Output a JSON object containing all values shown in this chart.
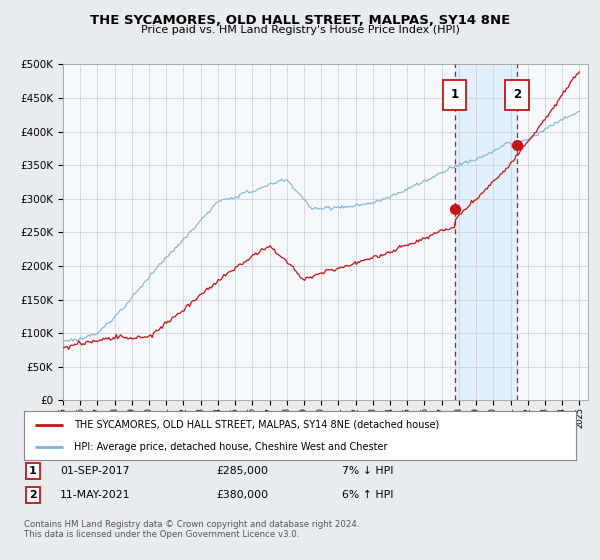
{
  "title": "THE SYCAMORES, OLD HALL STREET, MALPAS, SY14 8NE",
  "subtitle": "Price paid vs. HM Land Registry's House Price Index (HPI)",
  "ylim": [
    0,
    500000
  ],
  "xlim_start": 1995.0,
  "xlim_end": 2025.5,
  "sale1_x": 2017.75,
  "sale1_y": 285000,
  "sale2_x": 2021.37,
  "sale2_y": 380000,
  "legend_line1": "THE SYCAMORES, OLD HALL STREET, MALPAS, SY14 8NE (detached house)",
  "legend_line2": "HPI: Average price, detached house, Cheshire West and Chester",
  "footer": "Contains HM Land Registry data © Crown copyright and database right 2024.\nThis data is licensed under the Open Government Licence v3.0.",
  "hpi_color": "#7ab5d8",
  "sale_color": "#cc1111",
  "shade_color": "#ddeeff",
  "bg_color": "#e8ecf0",
  "plot_bg": "#f5f8fc",
  "grid_color": "#cccccc"
}
